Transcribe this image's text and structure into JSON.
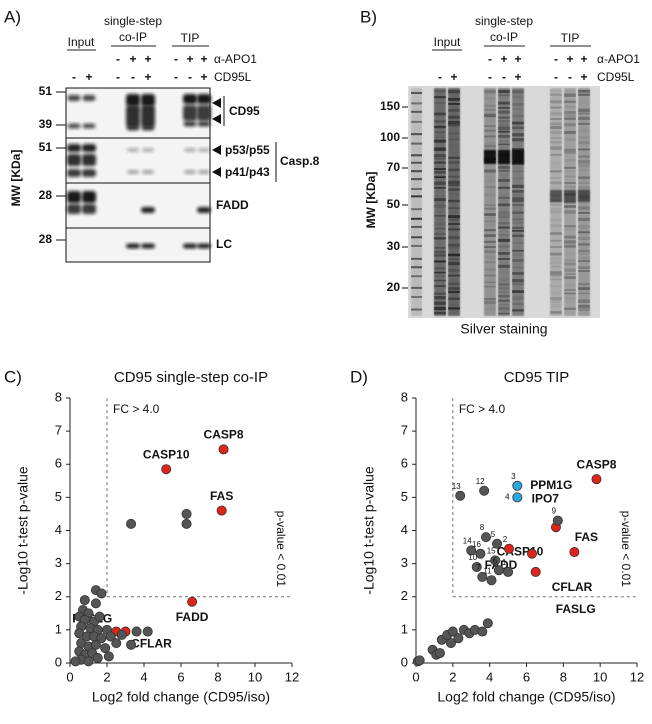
{
  "panel_a": {
    "letter": "A)",
    "header": {
      "input": "Input",
      "single_step": "single-step",
      "co_ip": "co-IP",
      "tip": "TIP"
    },
    "antibody": {
      "label": "α-APO1",
      "signs": [
        "-",
        "+",
        "+",
        "-",
        "+",
        "+"
      ]
    },
    "ligand": {
      "label": "CD95L",
      "signs": [
        "-",
        "+",
        "-",
        "-",
        "+",
        "-",
        "-",
        "+"
      ]
    },
    "axis_label": "MW [KDa]",
    "mw": [
      51,
      39,
      51,
      28,
      28
    ],
    "bands": {
      "cd95": "CD95",
      "p53": "p53/p55",
      "p41": "p41/p43",
      "casp8": "Casp.8",
      "fadd": "FADD",
      "lc": "LC"
    }
  },
  "panel_b": {
    "letter": "B)",
    "header": {
      "input": "Input",
      "single_step": "single-step",
      "co_ip": "co-IP",
      "tip": "TIP"
    },
    "antibody": {
      "label": "α-APO1",
      "signs": [
        "-",
        "+",
        "+",
        "-",
        "+",
        "+"
      ]
    },
    "ligand": {
      "label": "CD95L",
      "signs": [
        "-",
        "+",
        "-",
        "-",
        "+",
        "-",
        "-",
        "+"
      ]
    },
    "axis_label": "MW [KDa]",
    "mw": [
      150,
      100,
      70,
      50,
      30,
      20
    ],
    "caption": "Silver staining"
  },
  "chart_data": [
    {
      "type": "scatter",
      "letter": "C)",
      "title": "CD95 single-step co-IP",
      "x_label": "Log2 fold change (CD95/iso)",
      "y_label": "-Log10 t-test p-value",
      "xlim": [
        0,
        12
      ],
      "xticks": [
        0,
        2,
        4,
        6,
        8,
        10,
        12
      ],
      "ylim": [
        0,
        8
      ],
      "yticks": [
        0,
        1,
        2,
        3,
        4,
        5,
        6,
        7,
        8
      ],
      "threshold_x": 2,
      "threshold_y": 2,
      "threshold_x_label": "FC > 4.0",
      "threshold_y_label": "p-value < 0.01",
      "x": [
        8.3,
        5.2,
        8.2,
        6.6,
        2.5,
        3.0,
        3.3,
        6.3,
        6.3,
        1.4,
        1.7,
        0.8,
        1.4,
        0.7,
        1.0,
        0.5,
        0.8,
        1.3,
        1.6,
        0.6,
        1.1,
        1.5,
        2.0,
        0.5,
        0.9,
        1.3,
        1.7,
        2.2,
        2.8,
        3.6,
        0.6,
        1.0,
        1.4,
        1.9,
        3.3,
        0.5,
        0.8,
        1.2,
        0.6,
        1.0,
        1.5,
        2.1,
        0.3,
        2.5,
        4.2
      ],
      "values": [
        6.45,
        5.85,
        4.6,
        1.85,
        0.95,
        0.95,
        4.2,
        4.5,
        4.2,
        2.2,
        2.1,
        1.9,
        1.8,
        1.6,
        1.5,
        1.4,
        1.3,
        1.25,
        1.4,
        1.1,
        1.05,
        1.0,
        1.0,
        0.9,
        0.8,
        0.8,
        0.75,
        0.8,
        0.85,
        0.95,
        0.6,
        0.5,
        0.55,
        0.45,
        0.55,
        0.35,
        0.25,
        0.3,
        0.1,
        0.05,
        0.15,
        0.2,
        0.05,
        0.6,
        0.95
      ],
      "colors": [
        "#e0241b",
        "#e0241b",
        "#e0241b",
        "#e0241b",
        "#e0241b",
        "#e0241b",
        "#555555",
        "#555555",
        "#555555",
        "#555555",
        "#555555",
        "#555555",
        "#555555",
        "#555555",
        "#555555",
        "#555555",
        "#555555",
        "#555555",
        "#555555",
        "#555555",
        "#555555",
        "#555555",
        "#555555",
        "#555555",
        "#555555",
        "#555555",
        "#555555",
        "#555555",
        "#555555",
        "#555555",
        "#555555",
        "#555555",
        "#555555",
        "#555555",
        "#555555",
        "#555555",
        "#555555",
        "#555555",
        "#555555",
        "#555555",
        "#555555",
        "#555555",
        "#555555",
        "#555555",
        "#555555"
      ],
      "labels": [
        "CASP8",
        "CASP10",
        "FAS",
        "FADD",
        "FASLG",
        "CFLAR",
        null,
        null,
        null,
        null,
        null,
        null,
        null,
        null,
        null,
        null,
        null,
        null,
        null,
        null,
        null,
        null,
        null,
        null,
        null,
        null,
        null,
        null,
        null,
        null,
        null,
        null,
        null,
        null,
        null,
        null,
        null,
        null,
        null,
        null,
        null,
        null,
        null,
        null,
        null
      ]
    },
    {
      "type": "scatter",
      "letter": "D)",
      "title": "CD95 TIP",
      "x_label": "Log2 fold change (CD95/iso)",
      "y_label": "-Log10 t-test p-value",
      "xlim": [
        0,
        12
      ],
      "xticks": [
        0,
        2,
        4,
        6,
        8,
        10,
        12
      ],
      "ylim": [
        0,
        8
      ],
      "yticks": [
        0,
        1,
        2,
        3,
        4,
        5,
        6,
        7,
        8
      ],
      "threshold_x": 2,
      "threshold_y": 2,
      "threshold_x_label": "FC > 4.0",
      "threshold_y_label": "p-value < 0.01",
      "x": [
        9.8,
        7.6,
        8.6,
        6.3,
        6.5,
        5.05,
        5.5,
        5.5,
        2.4,
        3.7,
        7.7,
        3.8,
        4.4,
        3.0,
        3.5,
        4.3,
        3.3,
        4.5,
        5.0,
        3.6,
        4.1,
        0.1,
        0.2,
        0.9,
        1.1,
        1.3,
        1.4,
        1.7,
        2.0,
        2.3,
        2.6,
        2.9,
        3.2,
        3.6,
        3.9,
        1.9
      ],
      "values": [
        5.55,
        4.1,
        3.35,
        3.3,
        2.75,
        3.45,
        5.35,
        5.0,
        5.05,
        5.2,
        4.3,
        3.8,
        3.6,
        3.4,
        3.3,
        3.1,
        2.9,
        2.8,
        2.75,
        2.6,
        2.5,
        0.05,
        0.08,
        0.4,
        0.25,
        0.3,
        0.7,
        0.85,
        0.95,
        0.75,
        1.0,
        0.9,
        1.0,
        0.95,
        1.2,
        0.6
      ],
      "colors": [
        "#e0241b",
        "#e0241b",
        "#e0241b",
        "#e0241b",
        "#e0241b",
        "#e0241b",
        "#29a8e0",
        "#29a8e0",
        "#555555",
        "#555555",
        "#555555",
        "#555555",
        "#555555",
        "#555555",
        "#555555",
        "#555555",
        "#555555",
        "#555555",
        "#555555",
        "#555555",
        "#555555",
        "#555555",
        "#555555",
        "#555555",
        "#555555",
        "#555555",
        "#555555",
        "#555555",
        "#555555",
        "#555555",
        "#555555",
        "#555555",
        "#555555",
        "#555555",
        "#555555",
        "#555555"
      ],
      "labels": [
        "CASP8",
        "CASP10",
        "FAS",
        "CFLAR",
        "FASLG",
        "FADD",
        "PPM1G",
        "IPO7",
        null,
        null,
        null,
        null,
        null,
        null,
        null,
        null,
        null,
        null,
        null,
        null,
        null,
        null,
        null,
        null,
        null,
        null,
        null,
        null,
        null,
        null,
        null,
        null,
        null,
        null,
        null,
        null
      ],
      "ids": [
        null,
        null,
        null,
        null,
        null,
        2,
        3,
        4,
        13,
        12,
        9,
        8,
        5,
        14,
        16,
        15,
        10,
        6,
        1,
        7,
        11,
        null,
        null,
        null,
        null,
        null,
        null,
        null,
        null,
        null,
        null,
        null,
        null,
        null,
        null,
        null
      ]
    }
  ]
}
